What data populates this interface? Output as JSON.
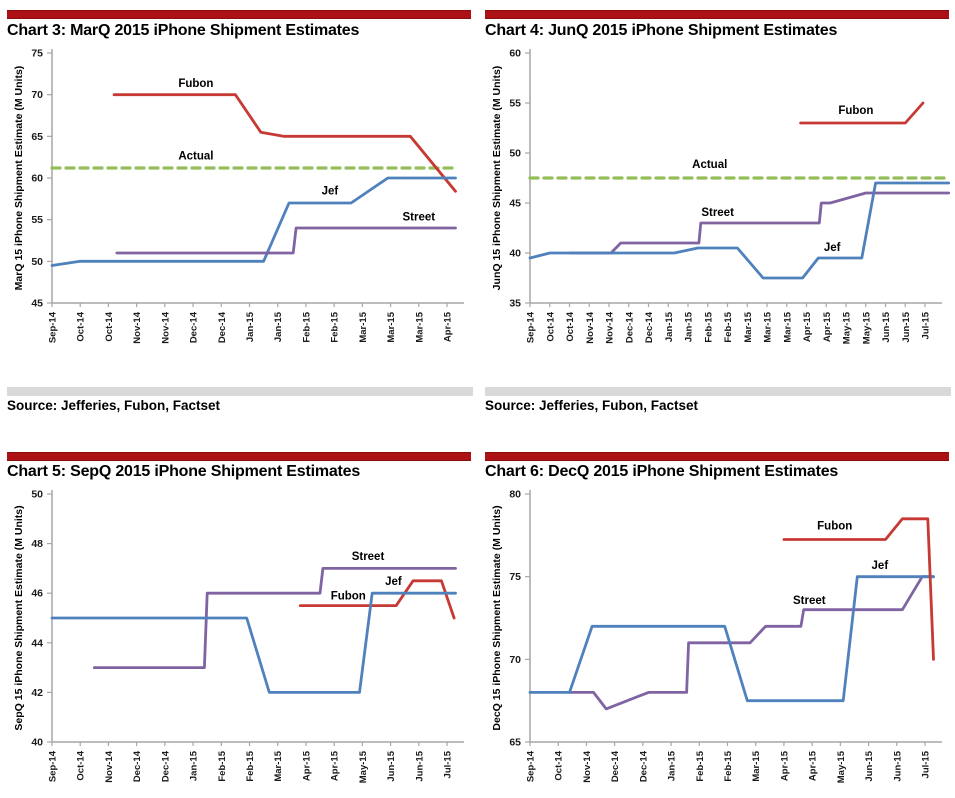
{
  "theme": {
    "accent_bar_color": "#AC1115",
    "separator_color": "#D9D9D9",
    "axis_color": "#A6A6A6",
    "tick_label_color": "#1A1A1A",
    "series_colors": {
      "jef": "#4F81BD",
      "fubon": "#C63934",
      "street": "#8064A2",
      "actual": "#94BE58"
    }
  },
  "sources": {
    "left": "Source: Jefferies, Fubon, Factset",
    "right": "Source: Jefferies, Fubon, Factset"
  },
  "chart_data": [
    {
      "type": "line",
      "title": "Chart 3: MarQ 2015 iPhone Shipment Estimates",
      "ylabel": "MarQ 15 iPhone Shipment Estimate (M Units)",
      "ylim": [
        45,
        75
      ],
      "yticks": [
        45,
        50,
        55,
        60,
        65,
        70,
        75
      ],
      "grid": false,
      "legend": "inline-labels",
      "xticklabels": [
        "Sep-14",
        "Oct-14",
        "Oct-14",
        "Nov-14",
        "Nov-14",
        "Dec-14",
        "Dec-14",
        "Jan-15",
        "Jan-15",
        "Feb-15",
        "Feb-15",
        "Mar-15",
        "Mar-15",
        "Mar-15",
        "Apr-15"
      ],
      "series": [
        {
          "name": "Actual",
          "color": "#94BE58",
          "dashed": true,
          "points": [
            [
              0,
              61.2
            ],
            [
              14.3,
              61.2
            ]
          ],
          "label": {
            "x": 5.1,
            "y": 62.7
          }
        },
        {
          "name": "Fubon",
          "color": "#C63934",
          "dashed": false,
          "points": [
            [
              2.2,
              70
            ],
            [
              6.5,
              70
            ],
            [
              7.4,
              65.5
            ],
            [
              8.2,
              65
            ],
            [
              12.7,
              65
            ],
            [
              14.3,
              58.4
            ]
          ],
          "label": {
            "x": 5.1,
            "y": 71.4
          }
        },
        {
          "name": "Jef",
          "color": "#4F81BD",
          "dashed": false,
          "points": [
            [
              0,
              49.5
            ],
            [
              1,
              50
            ],
            [
              7.5,
              50
            ],
            [
              8.4,
              57
            ],
            [
              10.6,
              57
            ],
            [
              11.9,
              60
            ],
            [
              14.3,
              60
            ]
          ],
          "label": {
            "x": 9.85,
            "y": 58.5
          }
        },
        {
          "name": "Street",
          "color": "#8064A2",
          "dashed": false,
          "points": [
            [
              2.3,
              51
            ],
            [
              8.55,
              51
            ],
            [
              8.65,
              54
            ],
            [
              14.3,
              54
            ]
          ],
          "label": {
            "x": 13.0,
            "y": 55.4
          }
        }
      ]
    },
    {
      "type": "line",
      "title": "Chart 4: JunQ 2015 iPhone Shipment Estimates",
      "ylabel": "JunQ 15 iPhone Shipment Estimate (M Units)",
      "ylim": [
        35,
        60
      ],
      "yticks": [
        35,
        40,
        45,
        50,
        55,
        60
      ],
      "grid": false,
      "legend": "inline-labels",
      "xticklabels": [
        "Sep-14",
        "Oct-14",
        "Oct-14",
        "Nov-14",
        "Nov-14",
        "Dec-14",
        "Dec-14",
        "Jan-15",
        "Jan-15",
        "Feb-15",
        "Feb-15",
        "Mar-15",
        "Mar-15",
        "Mar-15",
        "Apr-15",
        "Apr-15",
        "May-15",
        "May-15",
        "Jun-15",
        "Jun-15",
        "Jul-15"
      ],
      "series": [
        {
          "name": "Actual",
          "color": "#94BE58",
          "dashed": true,
          "points": [
            [
              0,
              47.5
            ],
            [
              21.2,
              47.5
            ]
          ],
          "label": {
            "x": 9.1,
            "y": 48.9
          }
        },
        {
          "name": "Fubon",
          "color": "#C63934",
          "dashed": false,
          "points": [
            [
              13.7,
              53
            ],
            [
              19.0,
              53
            ],
            [
              19.9,
              55
            ]
          ],
          "label": {
            "x": 16.5,
            "y": 54.3
          }
        },
        {
          "name": "Street",
          "color": "#8064A2",
          "dashed": false,
          "points": [
            [
              2,
              40
            ],
            [
              4.1,
              40
            ],
            [
              4.6,
              41
            ],
            [
              8.55,
              41
            ],
            [
              8.65,
              43
            ],
            [
              14.65,
              43
            ],
            [
              14.75,
              45
            ],
            [
              15.2,
              45
            ],
            [
              17.0,
              46
            ],
            [
              21.2,
              46
            ]
          ],
          "label": {
            "x": 9.5,
            "y": 44.1
          }
        },
        {
          "name": "Jef",
          "color": "#4F81BD",
          "dashed": false,
          "points": [
            [
              0,
              39.5
            ],
            [
              1,
              40
            ],
            [
              7.3,
              40
            ],
            [
              8.5,
              40.5
            ],
            [
              10.5,
              40.5
            ],
            [
              11.8,
              37.5
            ],
            [
              13.8,
              37.5
            ],
            [
              14.6,
              39.5
            ],
            [
              16.8,
              39.5
            ],
            [
              17.5,
              47
            ],
            [
              21.2,
              47
            ]
          ],
          "label": {
            "x": 15.3,
            "y": 40.6
          }
        }
      ]
    },
    {
      "type": "line",
      "title": "Chart 5: SepQ 2015 iPhone Shipment Estimates",
      "ylabel": "SepQ 15 iPhone Shipment Estimate (M Units)",
      "ylim": [
        40,
        50
      ],
      "yticks": [
        40,
        42,
        44,
        46,
        48,
        50
      ],
      "grid": false,
      "legend": "inline-labels",
      "xticklabels": [
        "Sep-14",
        "Oct-14",
        "Nov-14",
        "Dec-14",
        "Dec-14",
        "Jan-15",
        "Feb-15",
        "Feb-15",
        "Mar-15",
        "Apr-15",
        "Apr-15",
        "May-15",
        "Jun-15",
        "Jun-15",
        "Jul-15"
      ],
      "series": [
        {
          "name": "Street",
          "color": "#8064A2",
          "dashed": false,
          "points": [
            [
              1.5,
              43
            ],
            [
              5.4,
              43
            ],
            [
              5.5,
              46
            ],
            [
              9.5,
              46
            ],
            [
              9.6,
              47
            ],
            [
              14.3,
              47
            ]
          ],
          "label": {
            "x": 11.2,
            "y": 47.5
          }
        },
        {
          "name": "Fubon",
          "color": "#C63934",
          "dashed": false,
          "points": [
            [
              8.8,
              45.5
            ],
            [
              12.2,
              45.5
            ],
            [
              12.8,
              46.5
            ],
            [
              13.8,
              46.5
            ],
            [
              14.25,
              45
            ]
          ],
          "label": {
            "x": 10.5,
            "y": 45.9
          }
        },
        {
          "name": "Jef",
          "color": "#4F81BD",
          "dashed": false,
          "points": [
            [
              0,
              45
            ],
            [
              6.9,
              45
            ],
            [
              7.7,
              42
            ],
            [
              10.9,
              42
            ],
            [
              11.35,
              46
            ],
            [
              14.3,
              46
            ]
          ],
          "label": {
            "x": 12.1,
            "y": 46.5
          }
        }
      ]
    },
    {
      "type": "line",
      "title": "Chart 6: DecQ 2015 iPhone Shipment Estimates",
      "ylabel": "DecQ 15 iPhone Shipment Estimate (M Units)",
      "ylim": [
        65,
        80
      ],
      "yticks": [
        65,
        70,
        75,
        80
      ],
      "grid": false,
      "legend": "inline-labels",
      "xticklabels": [
        "Sep-14",
        "Oct-14",
        "Nov-14",
        "Dec-14",
        "Dec-14",
        "Jan-15",
        "Feb-15",
        "Feb-15",
        "Mar-15",
        "Apr-15",
        "Apr-15",
        "May-15",
        "Jun-15",
        "Jun-15",
        "Jul-15"
      ],
      "series": [
        {
          "name": "Street",
          "color": "#8064A2",
          "dashed": false,
          "points": [
            [
              1.4,
              68
            ],
            [
              2.25,
              68
            ],
            [
              2.7,
              67
            ],
            [
              4.2,
              68
            ],
            [
              5.55,
              68
            ],
            [
              5.62,
              71
            ],
            [
              7.8,
              71
            ],
            [
              8.35,
              72
            ],
            [
              9.6,
              72
            ],
            [
              9.7,
              73
            ],
            [
              13.2,
              73
            ],
            [
              13.9,
              75
            ],
            [
              14.3,
              75
            ]
          ],
          "label": {
            "x": 9.9,
            "y": 73.6
          }
        },
        {
          "name": "Jef",
          "color": "#4F81BD",
          "dashed": false,
          "points": [
            [
              0,
              68
            ],
            [
              1.4,
              68
            ],
            [
              2.2,
              72
            ],
            [
              6.9,
              72
            ],
            [
              7.7,
              67.5
            ],
            [
              11.1,
              67.5
            ],
            [
              11.6,
              75
            ],
            [
              14.3,
              75
            ]
          ],
          "label": {
            "x": 12.4,
            "y": 75.7
          }
        },
        {
          "name": "Fubon",
          "color": "#C63934",
          "dashed": false,
          "points": [
            [
              9.0,
              77.25
            ],
            [
              12.6,
              77.25
            ],
            [
              13.2,
              78.5
            ],
            [
              14.1,
              78.5
            ],
            [
              14.3,
              70
            ]
          ],
          "label": {
            "x": 10.8,
            "y": 78.1
          }
        }
      ]
    }
  ]
}
